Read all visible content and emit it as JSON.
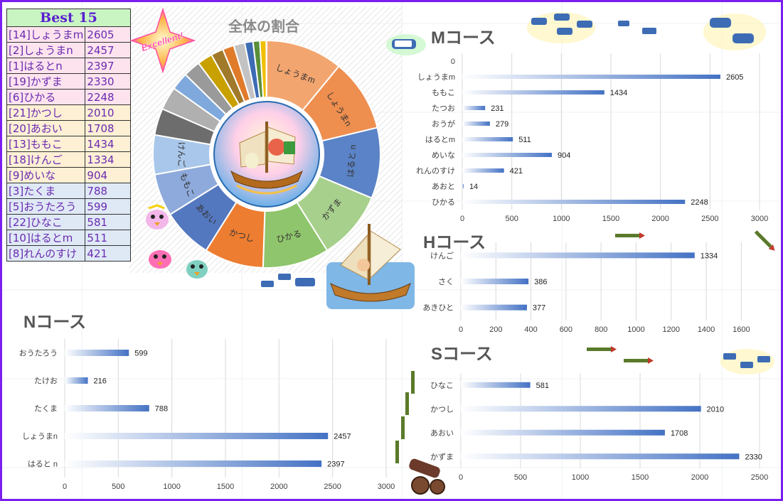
{
  "best": {
    "title": "Best 15",
    "rows": [
      {
        "name": "[14]しょうまm",
        "score": "2605",
        "bg": "#fde3ee"
      },
      {
        "name": "[2]しょうまn",
        "score": "2457",
        "bg": "#fde3ee"
      },
      {
        "name": "[1]はるとn",
        "score": "2397",
        "bg": "#fde3ee"
      },
      {
        "name": "[19]かずま",
        "score": "2330",
        "bg": "#fde3ee"
      },
      {
        "name": "[6]ひかる",
        "score": "2248",
        "bg": "#fde3ee"
      },
      {
        "name": "[21]かつし",
        "score": "2010",
        "bg": "#fdf0d5"
      },
      {
        "name": "[20]あおい",
        "score": "1708",
        "bg": "#fdf0d5"
      },
      {
        "name": "[13]ももこ",
        "score": "1434",
        "bg": "#fdf0d5"
      },
      {
        "name": "[18]けんご",
        "score": "1334",
        "bg": "#fdf0d5"
      },
      {
        "name": "[9]めいな",
        "score": "904",
        "bg": "#fdf0d5"
      },
      {
        "name": "[3]たくま",
        "score": "788",
        "bg": "#dfe9f6"
      },
      {
        "name": "[5]おうたろう",
        "score": "599",
        "bg": "#dfe9f6"
      },
      {
        "name": "[22]ひなこ",
        "score": "581",
        "bg": "#dfe9f6"
      },
      {
        "name": "[10]はるとm",
        "score": "511",
        "bg": "#dfe9f6"
      },
      {
        "name": "[8]れんのすけ",
        "score": "421",
        "bg": "#dfe9f6"
      }
    ]
  },
  "badge_text": "Excellent!",
  "chart_data": [
    {
      "id": "pie",
      "type": "pie",
      "title": "全体の割合",
      "labeled_slices": [
        {
          "label": "しょうまm",
          "value": 2605,
          "color": "#f3a56f"
        },
        {
          "label": "しょうまn",
          "value": 2457,
          "color": "#ee8e4f"
        },
        {
          "label": "はると n",
          "value": 2397,
          "color": "#5b83c7"
        },
        {
          "label": "かずま",
          "value": 2330,
          "color": "#a8d08d"
        },
        {
          "label": "ひかる",
          "value": 2248,
          "color": "#8fc56c"
        },
        {
          "label": "かつし",
          "value": 2010,
          "color": "#ed7d31"
        },
        {
          "label": "あおい",
          "value": 1708,
          "color": "#5478bf"
        },
        {
          "label": "ももこ",
          "value": 1434,
          "color": "#8eaadc"
        },
        {
          "label": "けんご",
          "value": 1334,
          "color": "#a9c7ea"
        }
      ],
      "other_slices": [
        {
          "value": 904,
          "color": "#6d6d6d"
        },
        {
          "value": 788,
          "color": "#b0b0b0"
        },
        {
          "value": 599,
          "color": "#7fa9dc"
        },
        {
          "value": 581,
          "color": "#9a9a9a"
        },
        {
          "value": 511,
          "color": "#c8a000"
        },
        {
          "value": 421,
          "color": "#a0792a"
        },
        {
          "value": 386,
          "color": "#e07b2a"
        },
        {
          "value": 377,
          "color": "#c3c3c3"
        },
        {
          "value": 279,
          "color": "#3d6cb5"
        },
        {
          "value": 231,
          "color": "#5a8f3a"
        },
        {
          "value": 216,
          "color": "#f0c000"
        },
        {
          "value": 14,
          "color": "#999999"
        }
      ]
    },
    {
      "id": "m",
      "type": "bar",
      "title": "Mコース",
      "categories": [
        "0",
        "しょうまm",
        "ももこ",
        "たつお",
        "おうが",
        "はるとm",
        "めいな",
        "れんのすけ",
        "あおと",
        "ひかる"
      ],
      "values": [
        null,
        2605,
        1434,
        231,
        279,
        511,
        904,
        421,
        14,
        2248
      ],
      "xlim": [
        0,
        3000
      ],
      "ticks": [
        0,
        500,
        1000,
        1500,
        2000,
        2500,
        3000
      ]
    },
    {
      "id": "h",
      "type": "bar",
      "title": "Hコース",
      "categories": [
        "けんご",
        "さく",
        "あきひと"
      ],
      "values": [
        1334,
        386,
        377
      ],
      "xlim": [
        0,
        1700
      ],
      "ticks": [
        0,
        200,
        400,
        600,
        800,
        1000,
        1200,
        1400,
        1600
      ]
    },
    {
      "id": "n",
      "type": "bar",
      "title": "Nコース",
      "categories": [
        "おうたろう",
        "たけお",
        "たくま",
        "しょうまn",
        "はると n"
      ],
      "values": [
        599,
        216,
        788,
        2457,
        2397
      ],
      "xlim": [
        0,
        3000
      ],
      "ticks": [
        0,
        500,
        1000,
        1500,
        2000,
        2500,
        3000
      ]
    },
    {
      "id": "s",
      "type": "bar",
      "title": "Sコース",
      "categories": [
        "ひなこ",
        "かつし",
        "あおい",
        "かずま"
      ],
      "values": [
        581,
        2010,
        1708,
        2330
      ],
      "xlim": [
        0,
        2500
      ],
      "ticks": [
        0,
        500,
        1000,
        1500,
        2000,
        2500
      ]
    }
  ],
  "colors": {
    "bar_end": "#4472c4",
    "border": "#7a1ff0",
    "grid": "#d9d9d9",
    "tick_text": "#404040"
  }
}
